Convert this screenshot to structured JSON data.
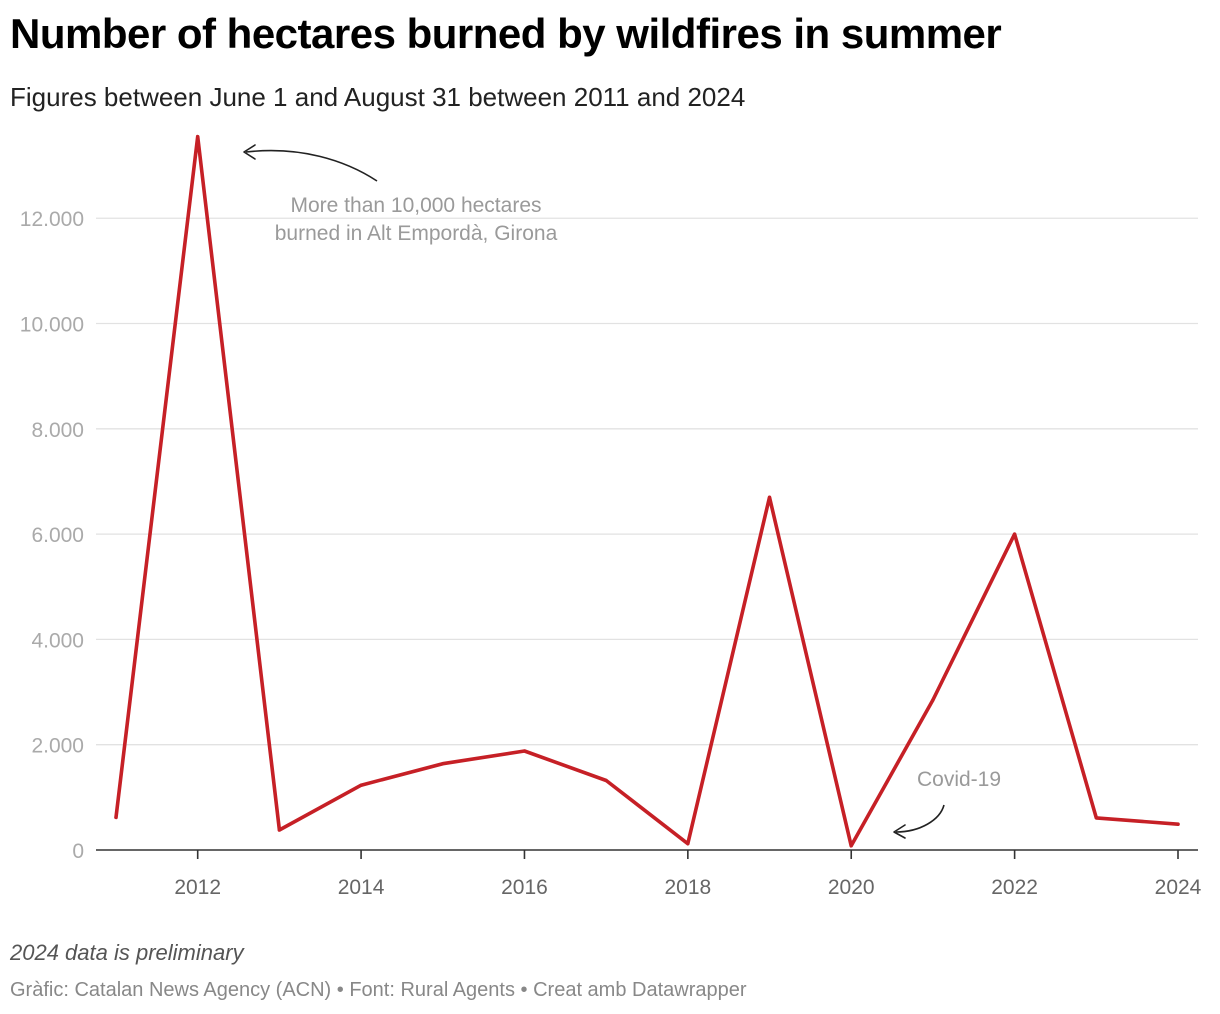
{
  "header": {
    "title": "Number of hectares burned by wildfires in summer",
    "subtitle": "Figures between June 1 and August 31 between 2011 and 2024"
  },
  "footer": {
    "note": "2024 data is preliminary",
    "source": "Gràfic: Catalan News Agency (ACN) • Font: Rural Agents • Creat amb Datawrapper"
  },
  "colors": {
    "line": "#c62026",
    "grid": "#e2e2e2",
    "axis": "#333333",
    "ytick": "#aaaaaa",
    "xtick": "#666666",
    "annotation": "#9a9a9a"
  },
  "chart_data": {
    "type": "line",
    "title": "Number of hectares burned by wildfires in summer",
    "subtitle": "Figures between June 1 and August 31 between 2011 and 2024",
    "x": [
      2011,
      2012,
      2013,
      2014,
      2015,
      2016,
      2017,
      2018,
      2019,
      2020,
      2021,
      2022,
      2023,
      2024
    ],
    "series": [
      {
        "values": [
          620,
          13550,
          380,
          1230,
          1640,
          1880,
          1320,
          120,
          6700,
          80,
          2850,
          6000,
          610,
          490
        ]
      }
    ],
    "xlim": [
      2011,
      2024
    ],
    "ylim": [
      0,
      13600
    ],
    "x_ticks": [
      2012,
      2014,
      2016,
      2018,
      2020,
      2022,
      2024
    ],
    "x_tick_labels": [
      "2012",
      "2014",
      "2016",
      "2018",
      "2020",
      "2022",
      "2024"
    ],
    "y_ticks": [
      0,
      2000,
      4000,
      6000,
      8000,
      10000,
      12000
    ],
    "y_tick_labels": [
      "0",
      "2.000",
      "4.000",
      "6.000",
      "8.000",
      "10.000",
      "12.000"
    ],
    "grid": "horizontal",
    "annotations": [
      {
        "lines": [
          "More than 10,000 hectares",
          "burned in Alt Empordà, Girona"
        ],
        "target": [
          2012,
          13550
        ]
      },
      {
        "lines": [
          "Covid-19"
        ],
        "target": [
          2020,
          80
        ]
      }
    ]
  }
}
